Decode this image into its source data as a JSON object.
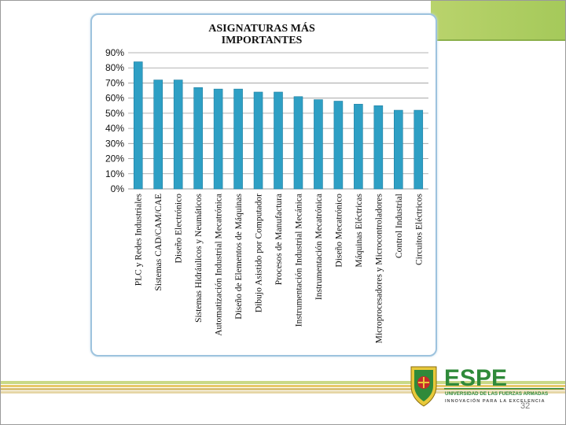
{
  "slide": {
    "page_number": "32",
    "logo": {
      "name": "ESPE",
      "line1": "UNIVERSIDAD DE LAS FUERZAS ARMADAS",
      "line2": "INNOVACIÓN PARA LA EXCELENCIA",
      "colors": {
        "green": "#2f8a3a",
        "red": "#c52b2b",
        "yellow": "#e0b21f"
      }
    }
  },
  "chart_data": {
    "type": "bar",
    "title_lines": [
      "ASIGNATURAS MÁS",
      "IMPORTANTES"
    ],
    "categories": [
      "PLC y Redes Industriales",
      "Sistemas CAD/CAM/CAE",
      "Diseño Electrónico",
      "Sistemas Hidráulicos y Neumáticos",
      "Automatización Industrial Mecatrónica",
      "Diseño de Elementos de Máquinas",
      "Dibujo Asistido por Computador",
      "Procesos de Manufactura",
      "Instrumentación Industrial Mecánica",
      "Instrumentación Mecatrónica",
      "Diseño Mecatrónico",
      "Máquinas Eléctricas",
      "Microprocesadores y Microcontroladores",
      "Control Industrial",
      "Circuitos Eléctricos"
    ],
    "values": [
      84,
      72,
      72,
      67,
      66,
      66,
      64,
      64,
      61,
      59,
      58,
      56,
      55,
      52,
      52
    ],
    "ylim": [
      0,
      90
    ],
    "yticks": [
      "0%",
      "10%",
      "20%",
      "30%",
      "40%",
      "50%",
      "60%",
      "70%",
      "80%",
      "90%"
    ],
    "grid": true,
    "bar_color": "#2e9fc4"
  }
}
